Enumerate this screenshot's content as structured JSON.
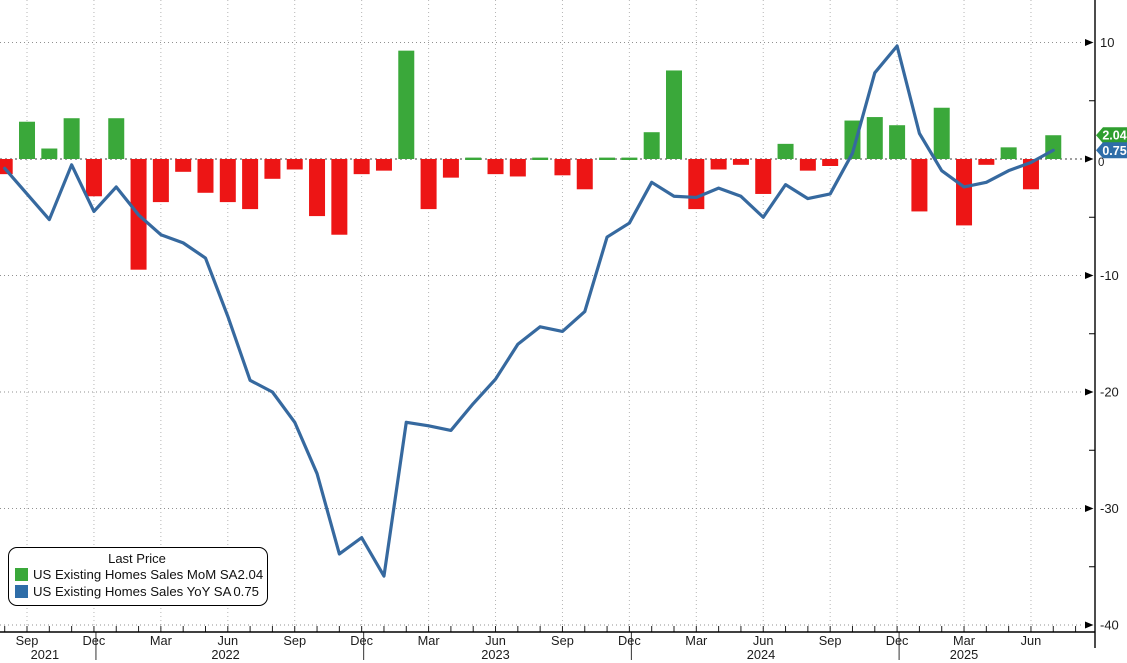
{
  "chart_data": {
    "type": "bar+line",
    "months": [
      "Aug 2021",
      "Sep 2021",
      "Oct 2021",
      "Nov 2021",
      "Dec 2021",
      "Jan 2022",
      "Feb 2022",
      "Mar 2022",
      "Apr 2022",
      "May 2022",
      "Jun 2022",
      "Jul 2022",
      "Aug 2022",
      "Sep 2022",
      "Oct 2022",
      "Nov 2022",
      "Dec 2022",
      "Jan 2023",
      "Feb 2023",
      "Mar 2023",
      "Apr 2023",
      "May 2023",
      "Jun 2023",
      "Jul 2023",
      "Aug 2023",
      "Sep 2023",
      "Oct 2023",
      "Nov 2023",
      "Dec 2023",
      "Jan 2024",
      "Feb 2024",
      "Mar 2024",
      "Apr 2024",
      "May 2024",
      "Jun 2024",
      "Jul 2024",
      "Aug 2024",
      "Sep 2024",
      "Oct 2024",
      "Nov 2024",
      "Dec 2024",
      "Jan 2025",
      "Feb 2025",
      "Mar 2025",
      "Apr 2025",
      "May 2025",
      "Jun 2025",
      "Jul 2025"
    ],
    "series": [
      {
        "name": "US Existing Homes Sales MoM SA",
        "type": "bar",
        "last_price": 2.04,
        "color_positive": "#3aa83a",
        "color_negative": "#ed1515",
        "values": [
          -1.3,
          3.2,
          0.9,
          3.5,
          -3.2,
          3.5,
          -9.5,
          -3.7,
          -1.1,
          -2.9,
          -3.7,
          -4.3,
          -1.7,
          -0.9,
          -4.9,
          -6.5,
          -1.3,
          -1.0,
          9.3,
          -4.3,
          -1.6,
          0.0,
          -1.3,
          -1.5,
          0.0,
          -1.4,
          -2.6,
          0.0,
          0.0,
          2.3,
          7.6,
          -4.3,
          -0.9,
          -0.5,
          -3.0,
          1.3,
          -1.0,
          -0.6,
          3.3,
          3.6,
          2.9,
          -4.5,
          4.4,
          -5.7,
          -0.5,
          1.0,
          -2.6,
          2.04
        ]
      },
      {
        "name": "US Existing Homes Sales YoY SA",
        "type": "line",
        "last_price": 0.75,
        "color": "#36699f",
        "values": [
          -0.8,
          -3.0,
          -5.2,
          -0.5,
          -4.5,
          -2.4,
          -4.8,
          -6.5,
          -7.2,
          -8.5,
          -13.5,
          -19.0,
          -20.0,
          -22.6,
          -27.0,
          -33.9,
          -32.5,
          -35.8,
          -22.6,
          -22.9,
          -23.3,
          -21.0,
          -18.9,
          -15.9,
          -14.4,
          -14.8,
          -13.1,
          -6.7,
          -5.5,
          -2.0,
          -3.2,
          -3.3,
          -2.5,
          -3.2,
          -5.0,
          -2.2,
          -3.4,
          -3.0,
          0.5,
          7.4,
          9.7,
          2.2,
          -1.0,
          -2.4,
          -2.0,
          -1.0,
          -0.3,
          0.75
        ]
      }
    ],
    "y_axis": {
      "side": "right",
      "major_ticks": [
        10,
        0,
        -10,
        -20,
        -30,
        -40
      ],
      "minor_ticks": [
        5,
        -5,
        -15,
        -25,
        -35
      ],
      "grid": true
    },
    "x_axis": {
      "quarter_ticks": [
        {
          "m": 1,
          "label": "Sep"
        },
        {
          "m": 4,
          "label": "Dec"
        },
        {
          "m": 7,
          "label": "Mar"
        },
        {
          "m": 10,
          "label": "Jun"
        },
        {
          "m": 13,
          "label": "Sep"
        },
        {
          "m": 16,
          "label": "Dec"
        },
        {
          "m": 19,
          "label": "Mar"
        },
        {
          "m": 22,
          "label": "Jun"
        },
        {
          "m": 25,
          "label": "Sep"
        },
        {
          "m": 28,
          "label": "Dec"
        },
        {
          "m": 31,
          "label": "Mar"
        },
        {
          "m": 34,
          "label": "Jun"
        },
        {
          "m": 37,
          "label": "Sep"
        },
        {
          "m": 40,
          "label": "Dec"
        },
        {
          "m": 43,
          "label": "Mar"
        },
        {
          "m": 46,
          "label": "Jun"
        }
      ],
      "year_labels": [
        {
          "m": 1.8,
          "label": "2021"
        },
        {
          "m": 9.9,
          "label": "2022"
        },
        {
          "m": 22.0,
          "label": "2023"
        },
        {
          "m": 33.9,
          "label": "2024"
        },
        {
          "m": 43.0,
          "label": "2025"
        }
      ],
      "year_separators_m": [
        4,
        16,
        28,
        40
      ],
      "grid": true
    },
    "last_value_badges": [
      {
        "text": "2.04",
        "color": "#2f9e2f",
        "value": 2.04
      },
      {
        "text": "0.75",
        "color": "#2e6da8",
        "value": 0.75
      }
    ]
  },
  "legend": {
    "title": "Last Price",
    "items": [
      {
        "label": "US Existing Homes Sales MoM SA",
        "value": "2.04",
        "color": "#3aa83a"
      },
      {
        "label": "US Existing Homes Sales YoY SA",
        "value": "0.75",
        "color": "#2e6da8"
      }
    ]
  }
}
